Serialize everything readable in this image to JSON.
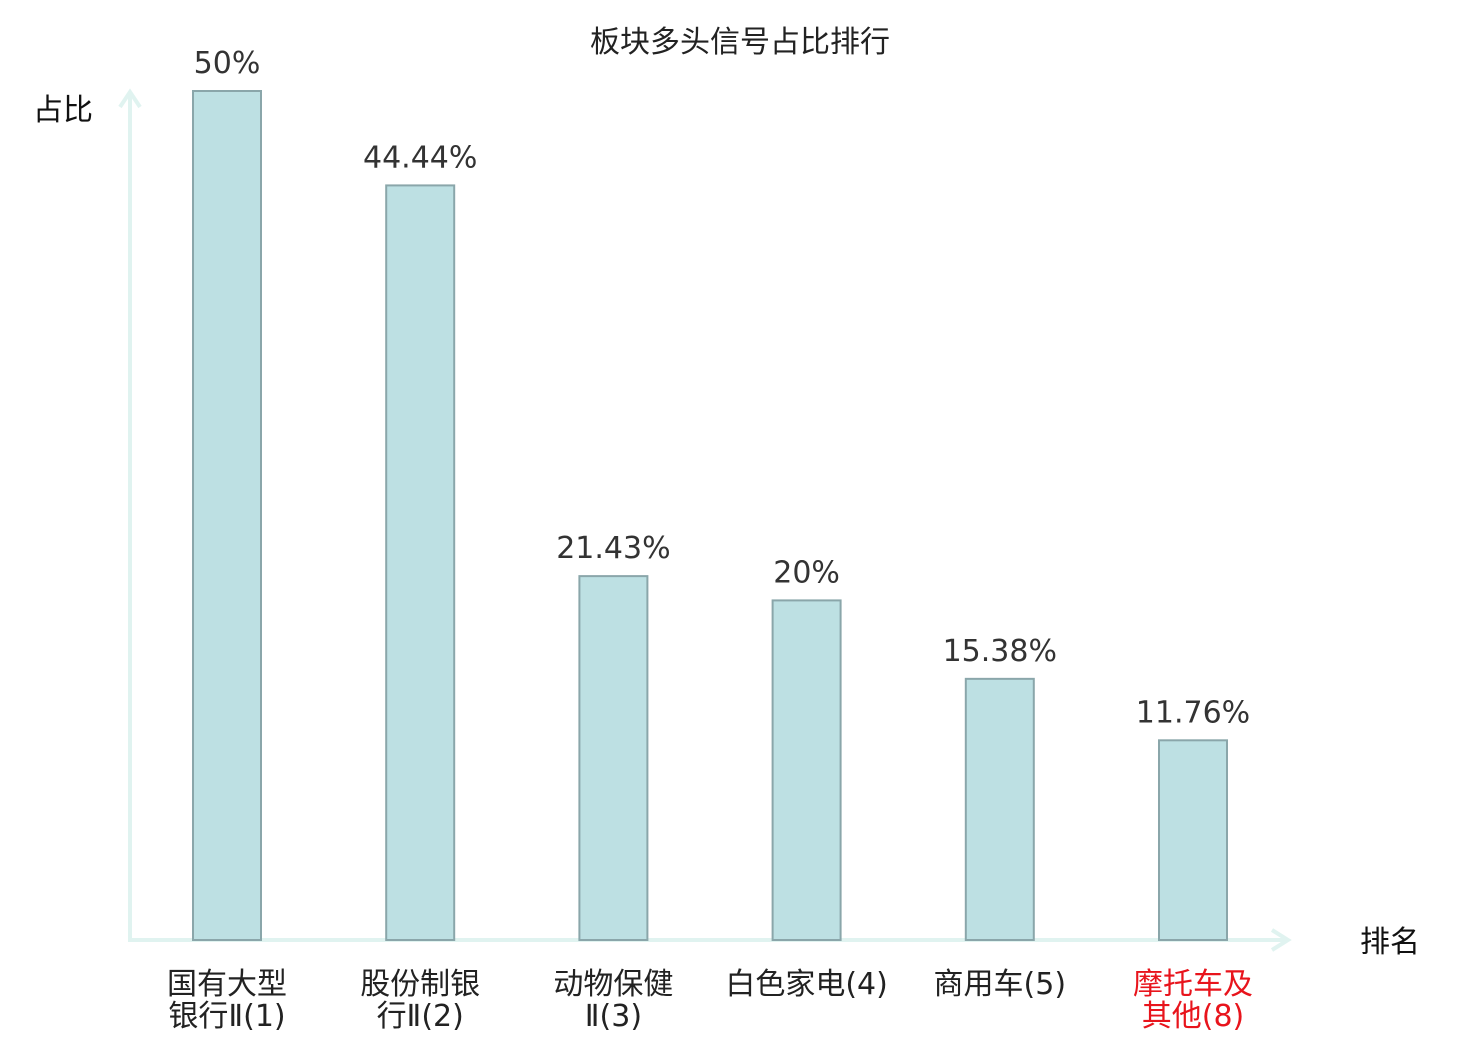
{
  "chart_data": {
    "type": "bar",
    "title": "板块多头信号占比排行",
    "ylabel": "占比",
    "xlabel": "排名",
    "ylim": [
      0,
      50
    ],
    "grid": false,
    "categories": [
      [
        "国有大型",
        "银行Ⅱ(1)"
      ],
      [
        "股份制银",
        "行Ⅱ(2)"
      ],
      [
        "动物保健",
        "Ⅱ(3)"
      ],
      [
        "白色家电(4)"
      ],
      [
        "商用车(5)"
      ],
      [
        "摩托车及",
        "其他(8)"
      ]
    ],
    "highlighted_category_index": 5,
    "values": [
      50,
      44.44,
      21.43,
      20,
      15.38,
      11.76
    ],
    "value_labels": [
      "50%",
      "44.44%",
      "21.43%",
      "20%",
      "15.38%",
      "11.76%"
    ]
  },
  "colors": {
    "bar_fill": "#bde0e3",
    "bar_stroke": "#8aa6aa",
    "axis": "#e0f3f0",
    "text": "#222222",
    "highlight_text": "#e8141c"
  }
}
